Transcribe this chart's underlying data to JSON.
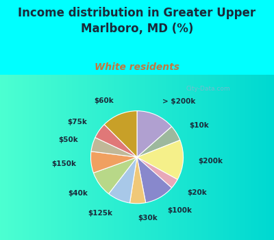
{
  "title": "Income distribution in Greater Upper\nMarlboro, MD (%)",
  "subtitle": "White residents",
  "background_color": "#00ffff",
  "watermark": "City-Data.com",
  "labels": [
    "> $200k",
    "$10k",
    "$200k",
    "$20k",
    "$100k",
    "$30k",
    "$125k",
    "$40k",
    "$150k",
    "$50k",
    "$75k",
    "$60k"
  ],
  "values": [
    13.5,
    5.5,
    14.0,
    3.5,
    10.5,
    5.5,
    8.0,
    9.0,
    7.5,
    5.0,
    5.5,
    12.5
  ],
  "colors": [
    "#b0a0d0",
    "#9db89d",
    "#f5f08a",
    "#e8a8b8",
    "#8888cc",
    "#f0c878",
    "#a8c8e8",
    "#b8d888",
    "#f0a060",
    "#c0b898",
    "#e07878",
    "#c8a028"
  ],
  "startangle": 90,
  "label_fontsize": 7.5,
  "title_fontsize": 12,
  "subtitle_fontsize": 10,
  "title_color": "#1a2a3a",
  "subtitle_color": "#c07840"
}
